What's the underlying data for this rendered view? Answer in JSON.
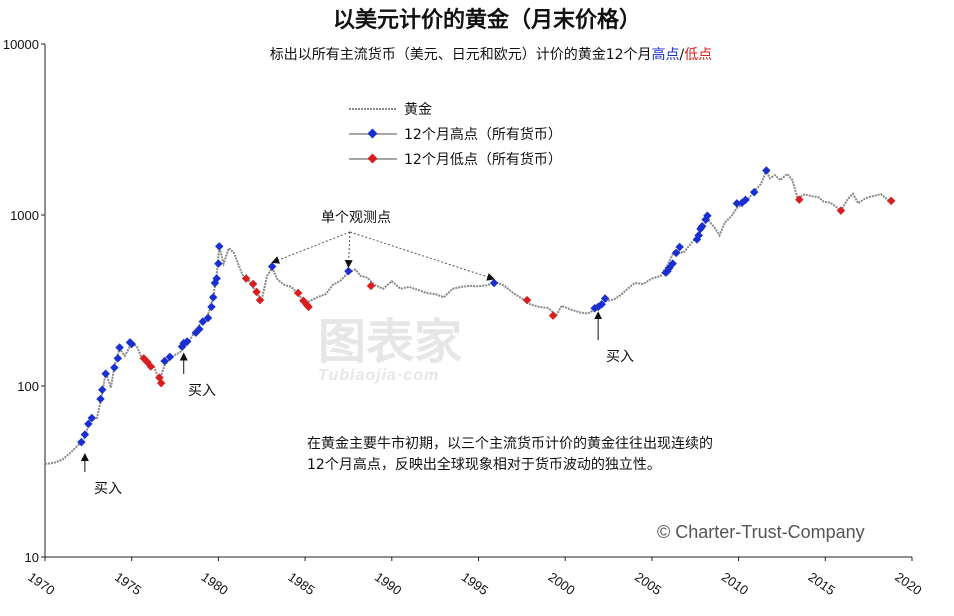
{
  "chart_data": {
    "type": "line",
    "title": "以美元计价的黄金（月末价格）",
    "subtitle_parts": [
      "标出以所有主流货币（美元、日元和欧元）计价的黄金12个月",
      "高点",
      "/",
      "低点"
    ],
    "y_scale": "log",
    "ylim": [
      10,
      10000
    ],
    "y_ticks": [
      "10",
      "100",
      "1000",
      "10000"
    ],
    "xlim": [
      1970,
      2020
    ],
    "x_ticks": [
      "1970",
      "1975",
      "1980",
      "1985",
      "1990",
      "1995",
      "2000",
      "2005",
      "2010",
      "2015",
      "2020"
    ],
    "grid": false,
    "legend_position": "top-center",
    "series": [
      {
        "name": "黄金",
        "color": "#888888",
        "points": [
          [
            1970.0,
            35
          ],
          [
            1970.5,
            35.5
          ],
          [
            1971.0,
            37
          ],
          [
            1971.5,
            41
          ],
          [
            1972.0,
            46
          ],
          [
            1972.3,
            50
          ],
          [
            1972.6,
            64
          ],
          [
            1973.0,
            65
          ],
          [
            1973.3,
            90
          ],
          [
            1973.5,
            120
          ],
          [
            1973.8,
            98
          ],
          [
            1974.0,
            130
          ],
          [
            1974.3,
            165
          ],
          [
            1974.6,
            150
          ],
          [
            1975.0,
            178
          ],
          [
            1975.3,
            170
          ],
          [
            1975.6,
            145
          ],
          [
            1975.9,
            137
          ],
          [
            1976.3,
            128
          ],
          [
            1976.6,
            108
          ],
          [
            1976.9,
            132
          ],
          [
            1977.3,
            148
          ],
          [
            1977.8,
            158
          ],
          [
            1978.2,
            175
          ],
          [
            1978.6,
            205
          ],
          [
            1979.0,
            235
          ],
          [
            1979.4,
            260
          ],
          [
            1979.7,
            330
          ],
          [
            1979.9,
            450
          ],
          [
            1980.05,
            650
          ],
          [
            1980.3,
            520
          ],
          [
            1980.6,
            640
          ],
          [
            1980.9,
            600
          ],
          [
            1981.2,
            500
          ],
          [
            1981.5,
            420
          ],
          [
            1981.8,
            410
          ],
          [
            1982.2,
            350
          ],
          [
            1982.5,
            320
          ],
          [
            1982.8,
            440
          ],
          [
            1983.1,
            490
          ],
          [
            1983.4,
            420
          ],
          [
            1983.8,
            390
          ],
          [
            1984.2,
            380
          ],
          [
            1984.6,
            345
          ],
          [
            1985.0,
            305
          ],
          [
            1985.3,
            315
          ],
          [
            1985.7,
            330
          ],
          [
            1986.2,
            345
          ],
          [
            1986.6,
            390
          ],
          [
            1987.0,
            410
          ],
          [
            1987.5,
            460
          ],
          [
            1987.9,
            480
          ],
          [
            1988.2,
            440
          ],
          [
            1988.6,
            430
          ],
          [
            1989.0,
            390
          ],
          [
            1989.5,
            370
          ],
          [
            1990.0,
            410
          ],
          [
            1990.5,
            370
          ],
          [
            1991.0,
            380
          ],
          [
            1991.5,
            365
          ],
          [
            1992.0,
            350
          ],
          [
            1992.5,
            345
          ],
          [
            1993.0,
            330
          ],
          [
            1993.5,
            370
          ],
          [
            1994.0,
            380
          ],
          [
            1994.5,
            385
          ],
          [
            1995.0,
            383
          ],
          [
            1995.5,
            388
          ],
          [
            1996.0,
            405
          ],
          [
            1996.5,
            385
          ],
          [
            1997.0,
            350
          ],
          [
            1997.5,
            325
          ],
          [
            1998.0,
            300
          ],
          [
            1998.5,
            290
          ],
          [
            1999.0,
            286
          ],
          [
            1999.5,
            260
          ],
          [
            1999.8,
            295
          ],
          [
            2000.3,
            280
          ],
          [
            2000.8,
            270
          ],
          [
            2001.3,
            265
          ],
          [
            2001.7,
            280
          ],
          [
            2002.0,
            295
          ],
          [
            2002.4,
            315
          ],
          [
            2002.8,
            320
          ],
          [
            2003.2,
            340
          ],
          [
            2003.6,
            370
          ],
          [
            2004.0,
            400
          ],
          [
            2004.5,
            395
          ],
          [
            2005.0,
            425
          ],
          [
            2005.5,
            440
          ],
          [
            2005.9,
            510
          ],
          [
            2006.3,
            620
          ],
          [
            2006.8,
            600
          ],
          [
            2007.2,
            670
          ],
          [
            2007.6,
            750
          ],
          [
            2007.9,
            830
          ],
          [
            2008.2,
            940
          ],
          [
            2008.6,
            850
          ],
          [
            2008.9,
            760
          ],
          [
            2009.2,
            900
          ],
          [
            2009.6,
            990
          ],
          [
            2009.9,
            1100
          ],
          [
            2010.2,
            1150
          ],
          [
            2010.5,
            1220
          ],
          [
            2010.9,
            1380
          ],
          [
            2011.3,
            1520
          ],
          [
            2011.6,
            1820
          ],
          [
            2011.8,
            1640
          ],
          [
            2012.1,
            1710
          ],
          [
            2012.4,
            1600
          ],
          [
            2012.8,
            1740
          ],
          [
            2013.1,
            1600
          ],
          [
            2013.4,
            1250
          ],
          [
            2013.8,
            1320
          ],
          [
            2014.2,
            1290
          ],
          [
            2014.6,
            1270
          ],
          [
            2014.9,
            1200
          ],
          [
            2015.3,
            1180
          ],
          [
            2015.6,
            1120
          ],
          [
            2015.9,
            1060
          ],
          [
            2016.3,
            1240
          ],
          [
            2016.6,
            1330
          ],
          [
            2016.9,
            1170
          ],
          [
            2017.3,
            1250
          ],
          [
            2017.6,
            1280
          ],
          [
            2017.9,
            1300
          ],
          [
            2018.2,
            1325
          ],
          [
            2018.5,
            1250
          ],
          [
            2018.7,
            1200
          ]
        ]
      },
      {
        "name": "12个月高点（所有货币）",
        "color": "#1a2fcf",
        "points": [
          [
            1972.1,
            47
          ],
          [
            1972.3,
            52
          ],
          [
            1972.5,
            60
          ],
          [
            1972.7,
            65
          ],
          [
            1973.2,
            84
          ],
          [
            1973.3,
            95
          ],
          [
            1973.5,
            118
          ],
          [
            1974.0,
            128
          ],
          [
            1974.2,
            145
          ],
          [
            1974.3,
            168
          ],
          [
            1974.9,
            180
          ],
          [
            1975.0,
            176
          ],
          [
            1976.9,
            140
          ],
          [
            1977.2,
            148
          ],
          [
            1977.9,
            170
          ],
          [
            1978.0,
            178
          ],
          [
            1978.2,
            182
          ],
          [
            1978.7,
            205
          ],
          [
            1978.9,
            215
          ],
          [
            1979.1,
            238
          ],
          [
            1979.4,
            250
          ],
          [
            1979.6,
            290
          ],
          [
            1979.7,
            330
          ],
          [
            1979.8,
            400
          ],
          [
            1979.9,
            425
          ],
          [
            1980.0,
            520
          ],
          [
            1980.05,
            655
          ],
          [
            1983.1,
            500
          ],
          [
            1987.5,
            470
          ],
          [
            1995.9,
            400
          ],
          [
            2001.7,
            285
          ],
          [
            2001.9,
            290
          ],
          [
            2002.1,
            300
          ],
          [
            2002.3,
            325
          ],
          [
            2005.8,
            460
          ],
          [
            2005.9,
            470
          ],
          [
            2006.0,
            490
          ],
          [
            2006.2,
            520
          ],
          [
            2006.4,
            600
          ],
          [
            2006.6,
            650
          ],
          [
            2007.6,
            720
          ],
          [
            2007.7,
            760
          ],
          [
            2007.8,
            830
          ],
          [
            2007.9,
            860
          ],
          [
            2008.1,
            940
          ],
          [
            2008.2,
            990
          ],
          [
            2009.9,
            1170
          ],
          [
            2010.2,
            1180
          ],
          [
            2010.4,
            1225
          ],
          [
            2010.9,
            1360
          ],
          [
            2011.6,
            1820
          ]
        ]
      },
      {
        "name": "12个月低点（所有货币）",
        "color": "#d81e1e",
        "points": [
          [
            1975.7,
            145
          ],
          [
            1975.9,
            138
          ],
          [
            1976.1,
            130
          ],
          [
            1976.6,
            112
          ],
          [
            1976.7,
            104
          ],
          [
            1981.6,
            425
          ],
          [
            1982.0,
            395
          ],
          [
            1982.2,
            355
          ],
          [
            1982.4,
            318
          ],
          [
            1984.6,
            350
          ],
          [
            1984.9,
            315
          ],
          [
            1985.1,
            298
          ],
          [
            1985.2,
            290
          ],
          [
            1988.8,
            385
          ],
          [
            1997.8,
            318
          ],
          [
            1999.3,
            258
          ],
          [
            2013.5,
            1230
          ],
          [
            2015.9,
            1060
          ],
          [
            2018.8,
            1210
          ]
        ]
      }
    ],
    "annotations": [
      {
        "text": "买入",
        "x": 1972.3,
        "y": 40
      },
      {
        "text": "买入",
        "x": 1978.0,
        "y": 155
      },
      {
        "text": "买入",
        "x": 2001.9,
        "y": 270
      },
      {
        "text": "单个观测点",
        "targets": [
          [
            1983.1,
            500
          ],
          [
            1987.5,
            470
          ],
          [
            1995.9,
            400
          ]
        ]
      }
    ],
    "note_lines": [
      "在黄金主要牛市初期，以三个主流货币计价的黄金往往出现连续的",
      "12个月高点，反映出全球现象相对于货币波动的独立性。"
    ],
    "copyright": "© Charter-Trust-Company"
  },
  "watermark": {
    "main": "图表家",
    "sub": "Tubiaojia·com"
  },
  "colors": {
    "high": "#1a2fcf",
    "low": "#d81e1e",
    "gold": "#888888"
  }
}
